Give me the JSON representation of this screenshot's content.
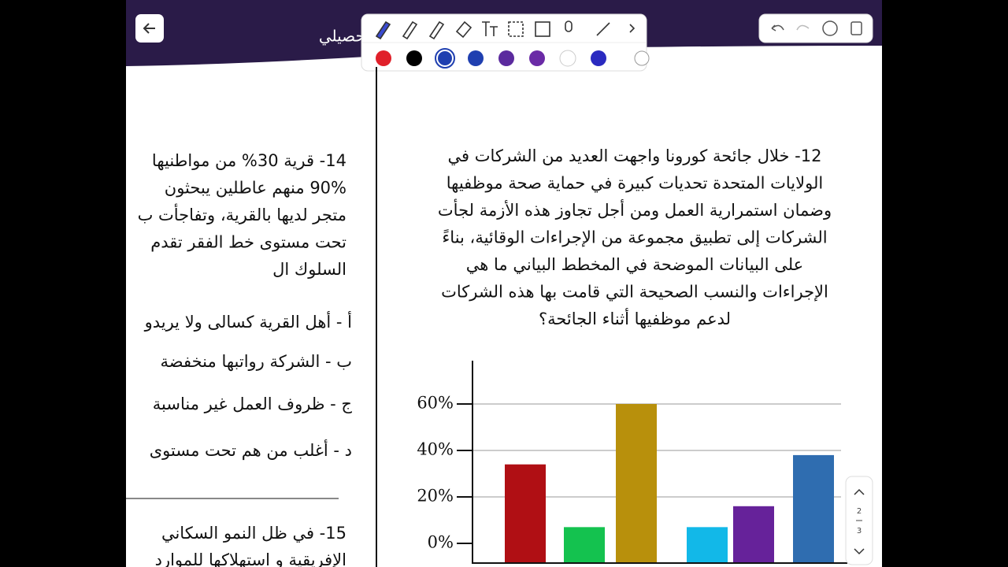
{
  "header": {
    "title": "تحصيلي"
  },
  "pager": {
    "current": 2,
    "total": 3
  },
  "question_12": {
    "lines": [
      "12- خلال جائحة كورونا واجهت العديد من الشركات في",
      "الولايات المتحدة تحديات كبيرة في حماية صحة موظفيها",
      "وضمان استمرارية العمل ومن أجل تجاوز هذه الأزمة لجأت",
      "الشركات إلى تطبيق مجموعة من الإجراءات الوقائية، بناءً",
      "على البيانات الموضحة في المخطط البياني ما هي",
      "الإجراءات والنسب الصحيحة التي قامت بها هذه الشركات",
      "لدعم موظفيها أثناء الجائحة؟"
    ]
  },
  "question_14": {
    "lines": [
      "14- قرية 30% من مواطنيها",
      "90% منهم عاطلين يبحثون",
      "متجر لديها بالقرية، وتفاجأت ب",
      "تحت مستوى خط الفقر تقدم",
      "السلوك ال"
    ],
    "options": [
      "أ - أهل القرية كسالى ولا يريدو",
      "ب - الشركة رواتبها منخفضة",
      "ج - ظروف العمل غير مناسبة",
      "د - أغلب من هم تحت مستوى"
    ]
  },
  "question_15": {
    "lines": [
      "15- في ظل النمو السكاني",
      "الإفريقية و استهلاكها للموارد"
    ]
  },
  "chart_data": {
    "type": "bar",
    "categories": [
      null,
      null,
      null,
      null,
      null,
      null
    ],
    "values": [
      34,
      7,
      60,
      7,
      16,
      38
    ],
    "colors": [
      "#b00f14",
      "#14c24f",
      "#b8900c",
      "#12b8e8",
      "#66229a",
      "#2f6db0"
    ],
    "ylim": [
      0,
      70
    ],
    "yticks": [
      {
        "value": 0,
        "label": "0%"
      },
      {
        "value": 20,
        "label": "20%"
      },
      {
        "value": 40,
        "label": "40%"
      },
      {
        "value": 60,
        "label": "60%"
      }
    ],
    "grid": true
  }
}
